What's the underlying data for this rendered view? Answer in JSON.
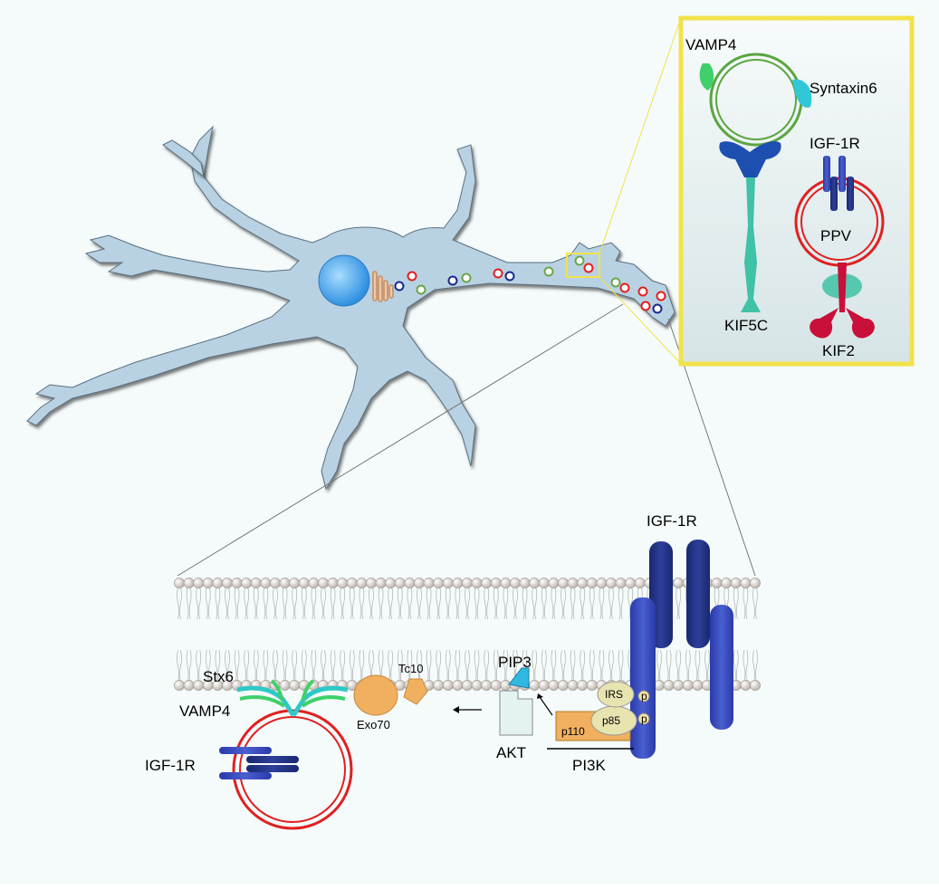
{
  "inset": {
    "vamp4": "VAMP4",
    "syntaxin6": "Syntaxin6",
    "igf1r": "IGF-1R",
    "ppv": "PPV",
    "kif5c": "KIF5C",
    "kif2": "KIF2"
  },
  "membrane": {
    "igf1r": "IGF-1R",
    "stx6": "Stx6",
    "vamp4": "VAMP4",
    "igf1r_vesicle": "IGF-1R",
    "exo70": "Exo70",
    "tc10": "Tc10",
    "pip3": "PIP3",
    "akt": "AKT",
    "irs": "IRS",
    "p85": "p85",
    "p110": "p110",
    "p_upper": "p",
    "p_lower": "p",
    "pi3k": "PI3K"
  },
  "colors": {
    "cell": "#b9d2e3",
    "nucleus": "#3fa3e8",
    "vesicle_red": "#e02020",
    "vesicle_green": "#6aa54a",
    "vesicle_blue": "#1a2a8c",
    "receptor_dark": "#1e2d78",
    "receptor_blue": "#3346b3",
    "highlight_box": "#f2e24a",
    "kinesin_teal": "#3fc2a6",
    "kif2_red": "#c8103a",
    "orange": "#f0b060"
  }
}
